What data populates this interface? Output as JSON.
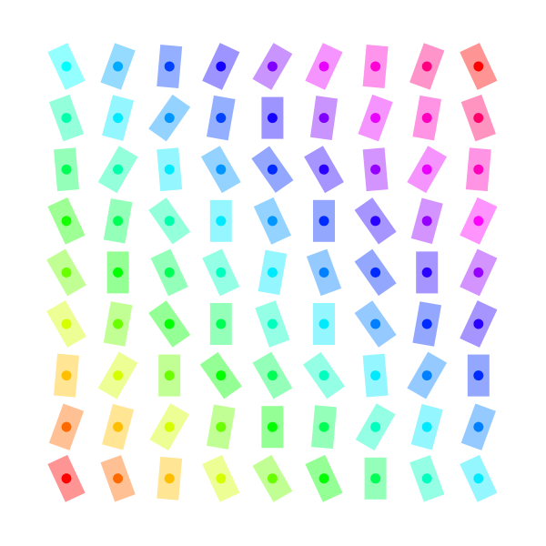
{
  "pattern": {
    "rows": 9,
    "cols": 9,
    "background": "#ffffff",
    "hues": [
      [
        180,
        200,
        225,
        245,
        270,
        295,
        310,
        330,
        0
      ],
      [
        160,
        185,
        205,
        225,
        245,
        270,
        295,
        315,
        335
      ],
      [
        140,
        160,
        185,
        205,
        230,
        250,
        275,
        295,
        315
      ],
      [
        115,
        140,
        160,
        185,
        205,
        230,
        250,
        275,
        300
      ],
      [
        95,
        120,
        140,
        165,
        185,
        210,
        230,
        250,
        275
      ],
      [
        70,
        95,
        120,
        140,
        165,
        185,
        210,
        230,
        250
      ],
      [
        45,
        70,
        95,
        120,
        140,
        165,
        185,
        210,
        230
      ],
      [
        25,
        45,
        70,
        95,
        120,
        140,
        165,
        185,
        210
      ],
      [
        0,
        25,
        45,
        70,
        95,
        120,
        140,
        165,
        185
      ]
    ],
    "angles": [
      [
        -25,
        20,
        5,
        25,
        30,
        25,
        5,
        20,
        -25
      ],
      [
        -20,
        15,
        35,
        10,
        0,
        8,
        20,
        10,
        -20
      ],
      [
        -5,
        30,
        -5,
        -30,
        -35,
        -30,
        -5,
        30,
        5
      ],
      [
        -25,
        10,
        -35,
        0,
        -25,
        0,
        -35,
        15,
        25
      ],
      [
        -30,
        0,
        -25,
        -25,
        10,
        -20,
        -35,
        0,
        25
      ],
      [
        -30,
        10,
        -35,
        0,
        -20,
        0,
        -35,
        10,
        25
      ],
      [
        5,
        30,
        0,
        -35,
        -30,
        -35,
        -5,
        30,
        0
      ],
      [
        20,
        15,
        30,
        10,
        0,
        5,
        30,
        15,
        20
      ],
      [
        -25,
        -20,
        5,
        -25,
        -30,
        -25,
        0,
        -20,
        -25
      ]
    ]
  }
}
